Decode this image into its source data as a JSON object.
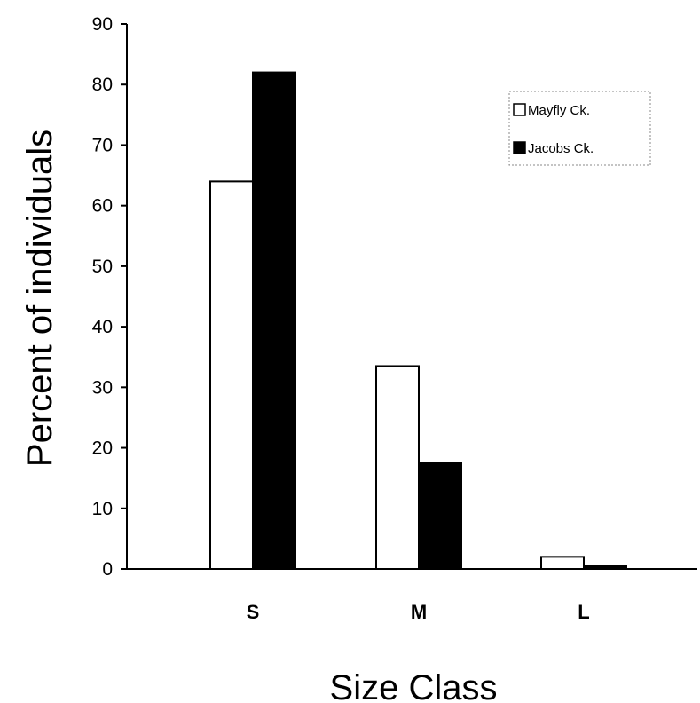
{
  "chart_data": {
    "type": "bar",
    "categories": [
      "S",
      "M",
      "L"
    ],
    "series": [
      {
        "name": "Mayfly Ck.",
        "values": [
          64,
          33.5,
          2
        ],
        "color": "#ffffff"
      },
      {
        "name": "Jacobs Ck.",
        "values": [
          82,
          17.5,
          0.5
        ],
        "color": "#000000"
      }
    ],
    "xlabel": "Size Class",
    "ylabel": "Percent of individuals",
    "ylim": [
      0,
      90
    ],
    "yticks": [
      "0",
      "10",
      "20",
      "30",
      "40",
      "50",
      "60",
      "70",
      "80",
      "90"
    ],
    "grid": false,
    "legend_position": "top-right"
  }
}
